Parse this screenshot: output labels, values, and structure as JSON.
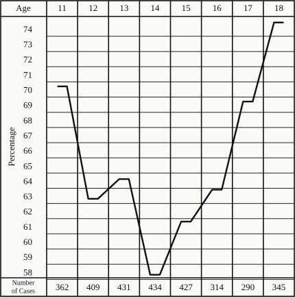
{
  "chart_data": {
    "type": "line",
    "x_label": "Age",
    "y_label": "Percentage",
    "cases_label": [
      "Number",
      "of Cases"
    ],
    "categories": [
      "11",
      "12",
      "13",
      "14",
      "15",
      "16",
      "17",
      "18"
    ],
    "values": [
      70.3,
      62.9,
      64.2,
      57.9,
      61.4,
      63.5,
      69.3,
      74.5
    ],
    "cases": [
      362,
      409,
      431,
      434,
      427,
      314,
      290,
      345
    ],
    "color": "#111111",
    "ylim": [
      57.7,
      74.9
    ],
    "yticks": [
      58,
      59,
      60,
      61,
      62,
      63,
      64,
      65,
      66,
      67,
      68,
      69,
      70,
      71,
      72,
      73,
      74
    ],
    "grid": true
  }
}
